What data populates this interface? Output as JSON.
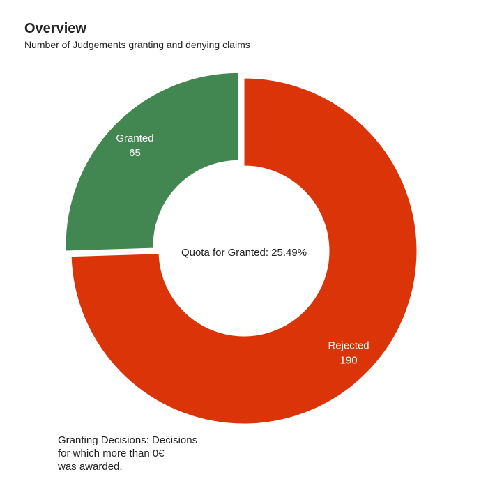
{
  "chart_data": {
    "type": "pie",
    "variant": "donut",
    "title": "Overview",
    "subtitle": "Number of Judgements granting and denying claims",
    "slices": [
      {
        "label": "Rejected",
        "value": 190,
        "color": "#db3409"
      },
      {
        "label": "Granted",
        "value": 65,
        "color": "#428752",
        "exploded": true
      }
    ],
    "center_text": "Quota for Granted: 25.49%",
    "footnote": "Granting Decisions: Decisions\nfor which more than 0€\nwas awarded.",
    "legend": "none"
  }
}
